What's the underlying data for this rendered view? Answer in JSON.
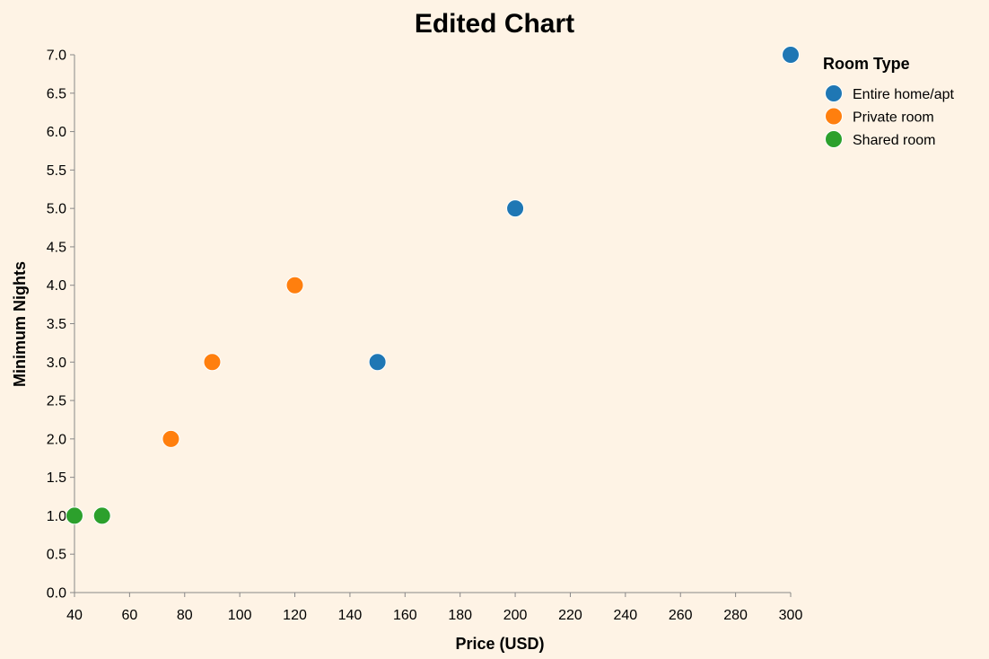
{
  "chart_data": {
    "type": "scatter",
    "title": "Edited Chart",
    "xlabel": "Price (USD)",
    "ylabel": "Minimum Nights",
    "xlim": [
      40,
      300
    ],
    "ylim": [
      0,
      7
    ],
    "x_ticks": [
      "40",
      "60",
      "80",
      "100",
      "120",
      "140",
      "160",
      "180",
      "200",
      "220",
      "240",
      "260",
      "280",
      "300"
    ],
    "y_ticks": [
      "0.0",
      "0.5",
      "1.0",
      "1.5",
      "2.0",
      "2.5",
      "3.0",
      "3.5",
      "4.0",
      "4.5",
      "5.0",
      "5.5",
      "6.0",
      "6.5",
      "7.0"
    ],
    "grid": false,
    "legend": {
      "title": "Room Type",
      "position": "top-right"
    },
    "series": [
      {
        "name": "Entire home/apt",
        "color": "#1f77b4",
        "points": [
          [
            150,
            3
          ],
          [
            200,
            5
          ],
          [
            300,
            7
          ]
        ]
      },
      {
        "name": "Private room",
        "color": "#ff7f0e",
        "points": [
          [
            75,
            2
          ],
          [
            90,
            3
          ],
          [
            120,
            4
          ]
        ]
      },
      {
        "name": "Shared room",
        "color": "#2ca02c",
        "points": [
          [
            40,
            1
          ],
          [
            50,
            1
          ]
        ]
      }
    ]
  }
}
